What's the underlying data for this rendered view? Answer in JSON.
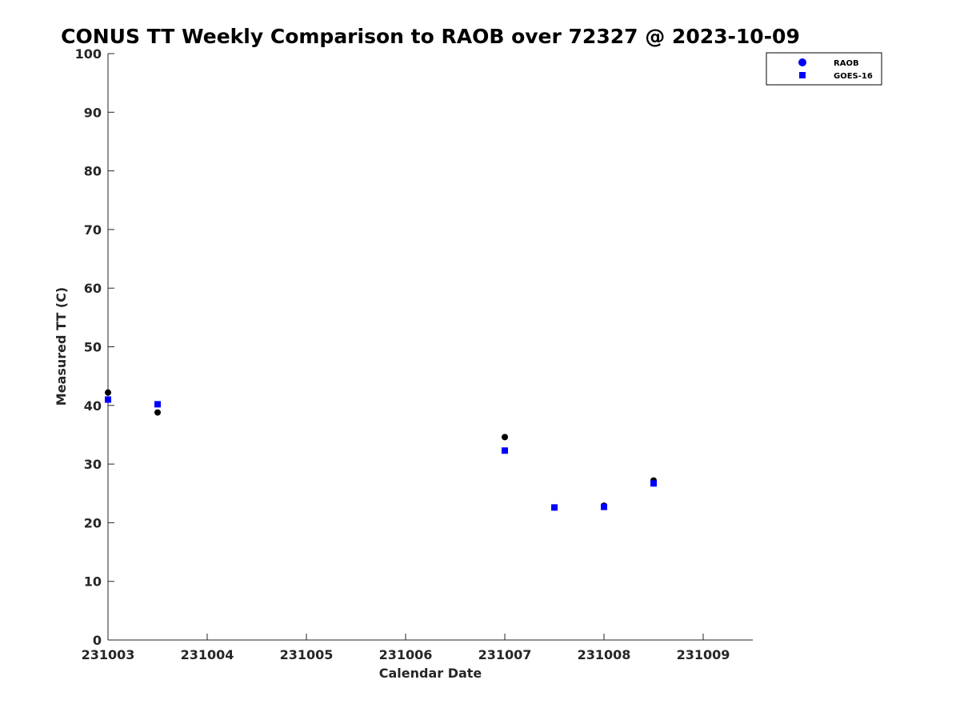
{
  "chart_data": {
    "type": "scatter",
    "title": "CONUS TT Weekly Comparison to RAOB over 72327 @ 2023-10-09",
    "xlabel": "Calendar Date",
    "ylabel": "Measured TT (C)",
    "xlim": [
      0,
      6.5
    ],
    "ylim": [
      0,
      100
    ],
    "x_ticks": [
      {
        "value": 0,
        "label": "231003"
      },
      {
        "value": 1,
        "label": "231004"
      },
      {
        "value": 2,
        "label": "231005"
      },
      {
        "value": 3,
        "label": "231006"
      },
      {
        "value": 4,
        "label": "231007"
      },
      {
        "value": 5,
        "label": "231008"
      },
      {
        "value": 6,
        "label": "231009"
      }
    ],
    "y_ticks": [
      0,
      10,
      20,
      30,
      40,
      50,
      60,
      70,
      80,
      90,
      100
    ],
    "grid": false,
    "legend_position": "top-right",
    "series": [
      {
        "name": "RAOB",
        "marker": "circle",
        "color": "#000000",
        "legend_color": "#0000ff",
        "points": [
          {
            "x": 0.0,
            "y": 42.2
          },
          {
            "x": 0.5,
            "y": 38.8
          },
          {
            "x": 4.0,
            "y": 34.6
          },
          {
            "x": 4.5,
            "y": 22.6
          },
          {
            "x": 5.0,
            "y": 22.9
          },
          {
            "x": 5.5,
            "y": 27.2
          }
        ]
      },
      {
        "name": "GOES-16",
        "marker": "square",
        "color": "#0000ff",
        "legend_color": "#0000ff",
        "points": [
          {
            "x": 0.0,
            "y": 41.0
          },
          {
            "x": 0.5,
            "y": 40.2
          },
          {
            "x": 4.0,
            "y": 32.3
          },
          {
            "x": 4.5,
            "y": 22.6
          },
          {
            "x": 5.0,
            "y": 22.7
          },
          {
            "x": 5.5,
            "y": 26.7
          }
        ]
      }
    ]
  }
}
